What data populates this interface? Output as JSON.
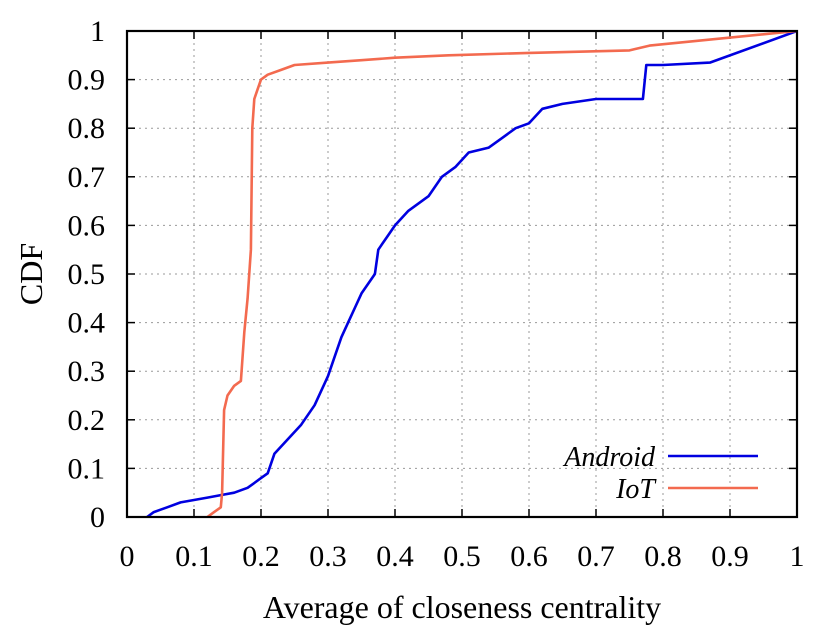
{
  "chart_data": {
    "type": "line",
    "xlabel": "Average of closeness centrality",
    "ylabel": "CDF",
    "xlim": [
      0,
      1
    ],
    "ylim": [
      0,
      1
    ],
    "xticks": [
      0,
      0.1,
      0.2,
      0.3,
      0.4,
      0.5,
      0.6,
      0.7,
      0.8,
      0.9,
      1
    ],
    "xtick_labels": [
      "0",
      "0.1",
      "0.2",
      "0.3",
      "0.4",
      "0.5",
      "0.6",
      "0.7",
      "0.8",
      "0.9",
      "1"
    ],
    "yticks": [
      0,
      0.1,
      0.2,
      0.3,
      0.4,
      0.5,
      0.6,
      0.7,
      0.8,
      0.9,
      1
    ],
    "ytick_labels": [
      "0",
      "0.1",
      "0.2",
      "0.3",
      "0.4",
      "0.5",
      "0.6",
      "0.7",
      "0.8",
      "0.9",
      "1"
    ],
    "grid": true,
    "legend_position": "bottom-right",
    "series": [
      {
        "name": "Android",
        "color": "#0000e0",
        "x": [
          0.03,
          0.04,
          0.05,
          0.06,
          0.08,
          0.1,
          0.12,
          0.14,
          0.16,
          0.18,
          0.19,
          0.2,
          0.21,
          0.22,
          0.24,
          0.26,
          0.28,
          0.3,
          0.31,
          0.32,
          0.33,
          0.34,
          0.35,
          0.37,
          0.375,
          0.38,
          0.39,
          0.4,
          0.42,
          0.45,
          0.47,
          0.49,
          0.51,
          0.54,
          0.56,
          0.58,
          0.6,
          0.62,
          0.65,
          0.7,
          0.77,
          0.775,
          0.8,
          0.87,
          1.0
        ],
        "y": [
          0.0,
          0.01,
          0.015,
          0.02,
          0.03,
          0.035,
          0.04,
          0.045,
          0.05,
          0.06,
          0.07,
          0.08,
          0.09,
          0.13,
          0.16,
          0.19,
          0.23,
          0.29,
          0.33,
          0.37,
          0.4,
          0.43,
          0.46,
          0.5,
          0.55,
          0.56,
          0.58,
          0.6,
          0.63,
          0.66,
          0.7,
          0.72,
          0.75,
          0.76,
          0.78,
          0.8,
          0.81,
          0.84,
          0.85,
          0.86,
          0.86,
          0.93,
          0.93,
          0.935,
          1.0
        ]
      },
      {
        "name": "IoT",
        "color": "#f36a4f",
        "x": [
          0.12,
          0.13,
          0.14,
          0.142,
          0.145,
          0.15,
          0.16,
          0.17,
          0.175,
          0.18,
          0.185,
          0.187,
          0.19,
          0.195,
          0.2,
          0.21,
          0.23,
          0.25,
          0.3,
          0.35,
          0.4,
          0.48,
          0.6,
          0.75,
          0.78,
          1.0
        ],
        "y": [
          0.0,
          0.01,
          0.02,
          0.05,
          0.22,
          0.25,
          0.27,
          0.28,
          0.38,
          0.45,
          0.55,
          0.8,
          0.86,
          0.88,
          0.9,
          0.91,
          0.92,
          0.93,
          0.935,
          0.94,
          0.945,
          0.95,
          0.955,
          0.96,
          0.97,
          1.0
        ]
      }
    ]
  }
}
